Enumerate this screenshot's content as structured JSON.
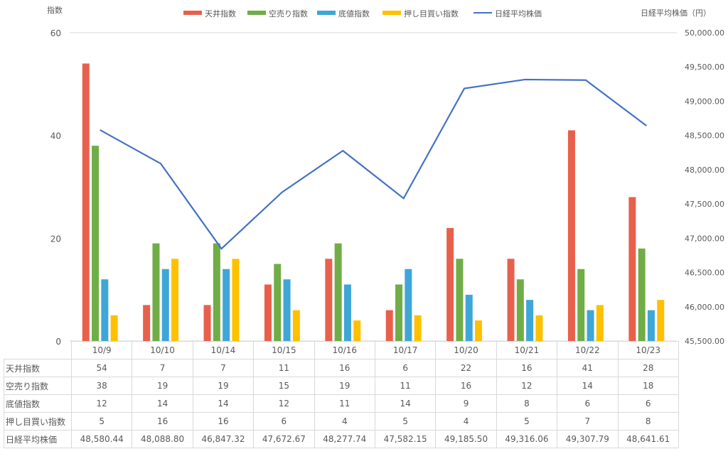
{
  "chart_data": {
    "type": "bar",
    "categories": [
      "10/9",
      "10/10",
      "10/14",
      "10/15",
      "10/16",
      "10/17",
      "10/20",
      "10/21",
      "10/22",
      "10/23"
    ],
    "series": [
      {
        "name": "天井指数",
        "kind": "bar",
        "axis": "left",
        "color": "#E8604C",
        "values": [
          54,
          7,
          7,
          11,
          16,
          6,
          22,
          16,
          41,
          28
        ]
      },
      {
        "name": "空売り指数",
        "kind": "bar",
        "axis": "left",
        "color": "#70AD47",
        "values": [
          38,
          19,
          19,
          15,
          19,
          11,
          16,
          12,
          14,
          18
        ]
      },
      {
        "name": "底値指数",
        "kind": "bar",
        "axis": "left",
        "color": "#3FA6D8",
        "values": [
          12,
          14,
          14,
          12,
          11,
          14,
          9,
          8,
          6,
          6
        ]
      },
      {
        "name": "押し目買い指数",
        "kind": "bar",
        "axis": "left",
        "color": "#FFC000",
        "values": [
          5,
          16,
          16,
          6,
          4,
          5,
          4,
          5,
          7,
          8
        ]
      },
      {
        "name": "日経平均株価",
        "kind": "line",
        "axis": "right",
        "color": "#4472C4",
        "values": [
          48580.44,
          48088.8,
          46847.32,
          47672.67,
          48277.74,
          47582.15,
          49185.5,
          49316.06,
          49307.79,
          48641.61
        ]
      }
    ],
    "table_values": {
      "日経平均株価": [
        "48,580.44",
        "48,088.80",
        "46,847.32",
        "47,672.67",
        "48,277.74",
        "47,582.15",
        "49,185.50",
        "49,316.06",
        "49,307.79",
        "48,641.61"
      ]
    },
    "ylabel_left": "指数",
    "ylabel_right": "日経平均株価（円）",
    "ylim_left": [
      0,
      60
    ],
    "yticks_left": [
      "0",
      "20",
      "40",
      "60"
    ],
    "ylim_right": [
      45500,
      50000
    ],
    "yticks_right": [
      "45,500.00",
      "46,000.00",
      "46,500.00",
      "47,000.00",
      "47,500.00",
      "48,000.00",
      "48,500.00",
      "49,000.00",
      "49,500.00",
      "50,000.00"
    ],
    "legend_position": "top",
    "grid": false
  }
}
